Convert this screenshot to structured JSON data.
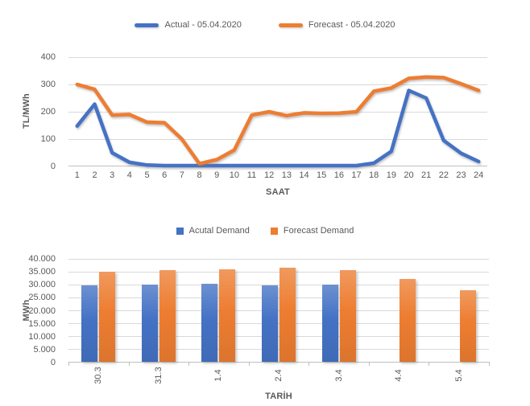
{
  "colors": {
    "actual": "#4472C4",
    "forecast": "#ED7D31",
    "gridline": "#D9D9D9",
    "axis_line": "#BFBFBF",
    "text": "#595959"
  },
  "chart_data": [
    {
      "type": "line",
      "x": [
        1,
        2,
        3,
        4,
        5,
        6,
        7,
        8,
        9,
        10,
        11,
        12,
        13,
        14,
        15,
        16,
        17,
        18,
        19,
        20,
        21,
        22,
        23,
        24
      ],
      "series": [
        {
          "name": "Actual - 05.04.2020",
          "color": "#4472C4",
          "values": [
            148,
            228,
            50,
            15,
            5,
            3,
            3,
            3,
            3,
            3,
            3,
            3,
            3,
            3,
            3,
            3,
            3,
            12,
            55,
            278,
            250,
            95,
            48,
            18
          ]
        },
        {
          "name": "Forecast - 05.04.2020",
          "color": "#ED7D31",
          "values": [
            300,
            282,
            188,
            190,
            162,
            160,
            100,
            10,
            25,
            60,
            188,
            200,
            186,
            196,
            194,
            195,
            200,
            275,
            287,
            322,
            327,
            325,
            302,
            278
          ]
        }
      ],
      "xlabel": "SAAT",
      "ylabel": "TL/MWh",
      "ylim": [
        0,
        400
      ],
      "yticks": [
        0,
        100,
        200,
        300,
        400
      ],
      "ytick_labels": [
        "0",
        "100",
        "200",
        "300",
        "400"
      ],
      "grid": true,
      "legend_position": "top"
    },
    {
      "type": "bar",
      "categories": [
        "30.3",
        "31.3",
        "1.4",
        "2.4",
        "3.4",
        "4.4",
        "5.4"
      ],
      "series": [
        {
          "name": "Acutal Demand",
          "color": "#4472C4",
          "values": [
            29500,
            29900,
            30000,
            29600,
            29700,
            null,
            null
          ]
        },
        {
          "name": "Forecast Demand",
          "color": "#ED7D31",
          "values": [
            34600,
            35400,
            35800,
            36400,
            35400,
            32100,
            27500
          ]
        }
      ],
      "xlabel": "TARİH",
      "ylabel": "MWh",
      "ylim": [
        0,
        40000
      ],
      "yticks": [
        0,
        5000,
        10000,
        15000,
        20000,
        25000,
        30000,
        35000,
        40000
      ],
      "ytick_labels": [
        "0",
        "5.000",
        "10.000",
        "15.000",
        "20.000",
        "25.000",
        "30.000",
        "35.000",
        "40.000"
      ],
      "grid": true,
      "legend_position": "top"
    }
  ]
}
